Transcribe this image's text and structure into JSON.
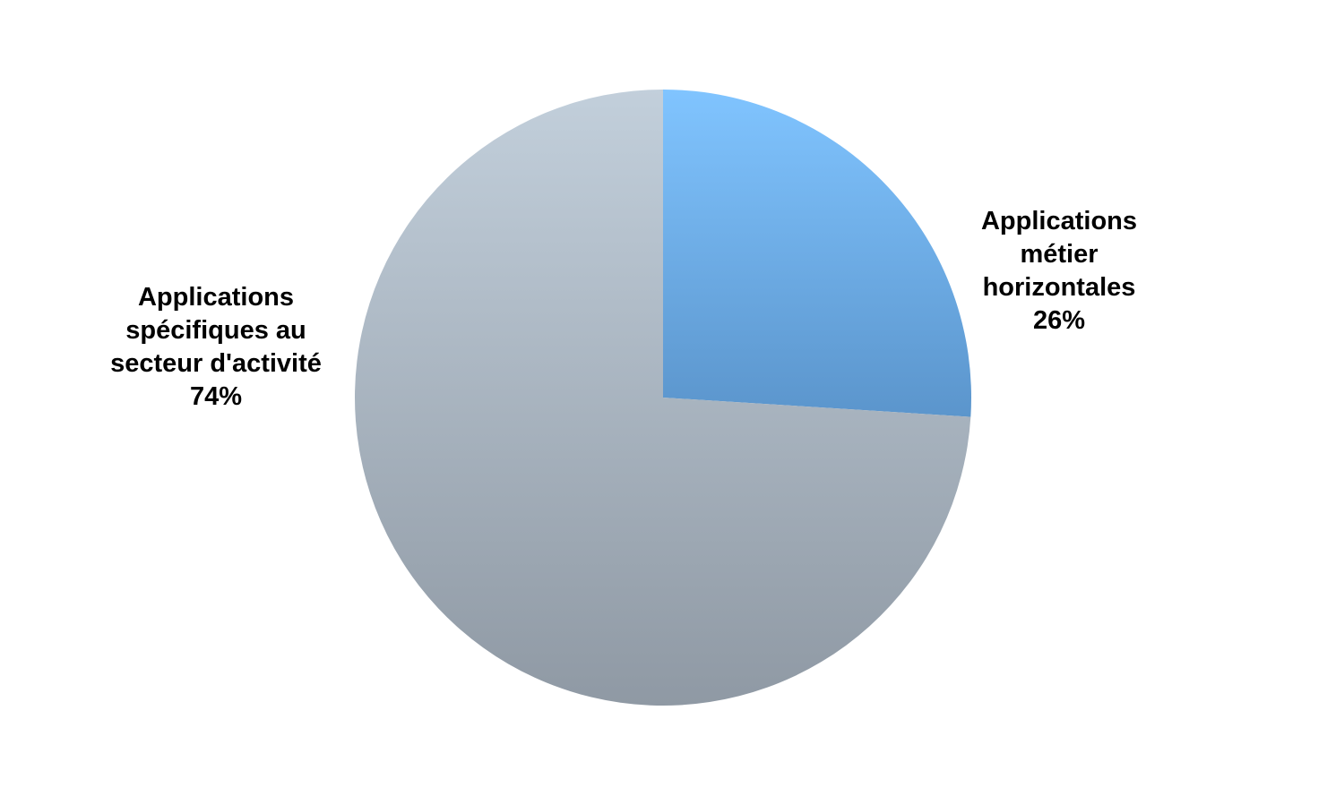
{
  "chart_data": {
    "type": "pie",
    "title": "",
    "start_angle_deg": 0,
    "direction": "clockwise",
    "slices": [
      {
        "label_lines": [
          "Applications",
          "métier",
          "horizontales",
          "26%"
        ],
        "label": "Applications métier horizontales",
        "value": 26,
        "value_label": "26%",
        "color_top": "#80C4FF",
        "color_bottom": "#5B95CC"
      },
      {
        "label_lines": [
          "Applications",
          "spécifiques au",
          "secteur d'activité",
          "74%"
        ],
        "label": "Applications spécifiques au secteur d'activité",
        "value": 74,
        "value_label": "74%",
        "color_top": "#C2CFDB",
        "color_bottom": "#8F99A4"
      }
    ],
    "legend": "none",
    "data_labels": "outside"
  }
}
